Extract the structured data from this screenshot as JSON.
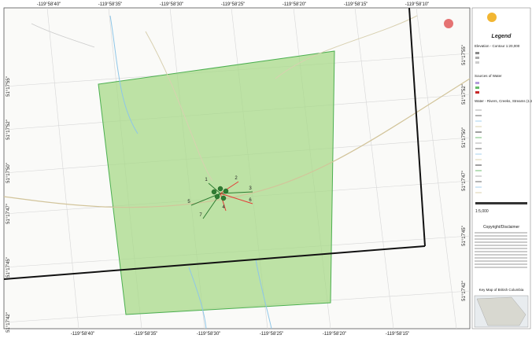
{
  "map": {
    "top_labels": [
      "-119°58'40\"",
      "-119°58'35\"",
      "-119°58'30\"",
      "-119°58'25\"",
      "-119°58'20\"",
      "-119°58'15\"",
      "-119°58'10\""
    ],
    "bottom_labels": [
      "-119°58'40\"",
      "-119°58'35\"",
      "-119°58'30\"",
      "-119°58'25\"",
      "-119°58'20\"",
      "-119°58'15\""
    ],
    "left_labels": [
      "51°17'55\"",
      "51°17'52\"",
      "51°17'50\"",
      "51°17'47\"",
      "51°17'45\"",
      "51°17'42\""
    ],
    "right_labels": [
      "51°17'55\"",
      "51°17'52\"",
      "51°17'50\"",
      "51°17'47\"",
      "51°17'45\"",
      "51°17'42\""
    ],
    "point_labels": [
      "1",
      "2",
      "3",
      "4",
      "5",
      "6",
      "7"
    ]
  },
  "legend": {
    "heading": "Legend",
    "sections": [
      "Elevation - Contour 1:20,000",
      "Sources of Water",
      "Water - Rivers, Creeks, Streams (1:20,000)"
    ],
    "scale": "1:5,000",
    "copyright": "Copyright/Disclaimer",
    "key_map": "Key Map of British Columbia"
  }
}
